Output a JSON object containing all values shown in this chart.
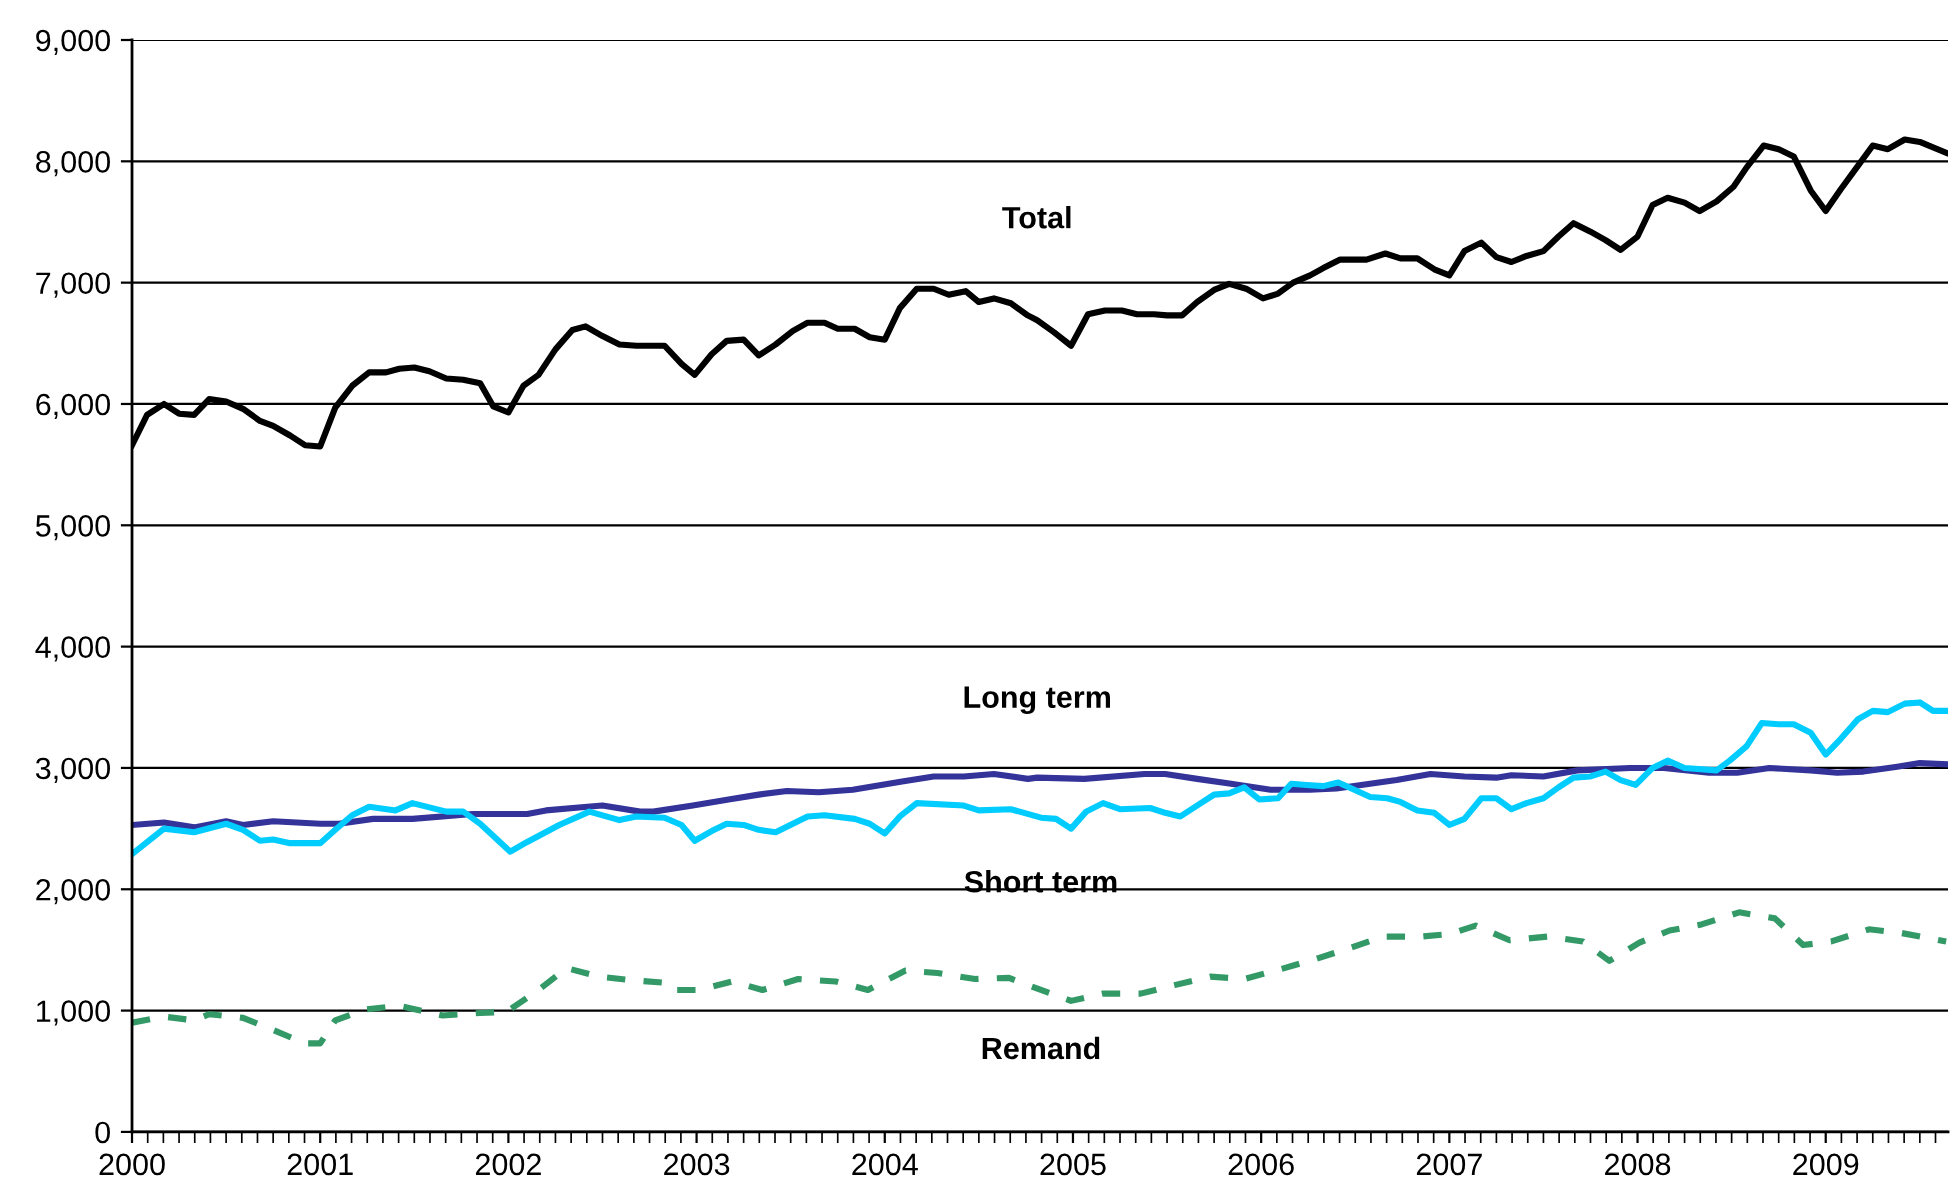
{
  "chart_data": {
    "type": "line",
    "xlim": [
      2000,
      2009.65
    ],
    "xticks": [
      2000,
      2001,
      2002,
      2003,
      2004,
      2005,
      2006,
      2007,
      2008,
      2009
    ],
    "ylim": [
      0,
      9000
    ],
    "yticks": [
      0,
      {
        "value": 1000,
        "label": "1,000"
      },
      {
        "value": 2000,
        "label": "2,000"
      },
      {
        "value": 3000,
        "label": "3,000"
      },
      {
        "value": 4000,
        "label": "4,000"
      },
      {
        "value": 5000,
        "label": "5,000"
      },
      {
        "value": 6000,
        "label": "6,000"
      },
      {
        "value": 7000,
        "label": "7,000"
      },
      {
        "value": 8000,
        "label": "8,000"
      },
      {
        "value": 9000,
        "label": "9,000"
      }
    ],
    "grid": "y",
    "legend": false,
    "marker": "none",
    "series": [
      {
        "name": "Total",
        "color": "#000000",
        "line_style": "solid",
        "x": [
          2000.0,
          2000.08,
          2000.17,
          2000.25,
          2000.33,
          2000.41,
          2000.5,
          2000.59,
          2000.68,
          2000.75,
          2000.84,
          2000.92,
          2001.0,
          2001.08,
          2001.17,
          2001.26,
          2001.35,
          2001.42,
          2001.5,
          2001.58,
          2001.67,
          2001.76,
          2001.85,
          2001.92,
          2002.0,
          2002.08,
          2002.16,
          2002.25,
          2002.34,
          2002.41,
          2002.5,
          2002.59,
          2002.68,
          2002.83,
          2002.92,
          2002.99,
          2003.08,
          2003.16,
          2003.25,
          2003.33,
          2003.42,
          2003.51,
          2003.59,
          2003.68,
          2003.75,
          2003.84,
          2003.92,
          2004.0,
          2004.08,
          2004.17,
          2004.26,
          2004.34,
          2004.43,
          2004.5,
          2004.58,
          2004.67,
          2004.76,
          2004.81,
          2004.9,
          2004.99,
          2005.08,
          2005.17,
          2005.26,
          2005.34,
          2005.43,
          2005.5,
          2005.58,
          2005.66,
          2005.75,
          2005.83,
          2005.92,
          2006.01,
          2006.09,
          2006.17,
          2006.26,
          2006.33,
          2006.42,
          2006.56,
          2006.66,
          2006.74,
          2006.83,
          2006.92,
          2007.0,
          2007.08,
          2007.17,
          2007.25,
          2007.33,
          2007.41,
          2007.5,
          2007.58,
          2007.66,
          2007.75,
          2007.83,
          2007.91,
          2008.0,
          2008.08,
          2008.16,
          2008.25,
          2008.33,
          2008.42,
          2008.51,
          2008.58,
          2008.67,
          2008.75,
          2008.83,
          2008.92,
          2009.0,
          2009.08,
          2009.17,
          2009.25,
          2009.33,
          2009.42,
          2009.5,
          2009.64
        ],
        "values": [
          5660,
          5910,
          6000,
          5920,
          5910,
          6040,
          6020,
          5960,
          5860,
          5820,
          5740,
          5660,
          5650,
          5970,
          6150,
          6260,
          6260,
          6290,
          6300,
          6270,
          6210,
          6200,
          6170,
          5980,
          5930,
          6150,
          6240,
          6450,
          6610,
          6640,
          6560,
          6490,
          6480,
          6480,
          6330,
          6240,
          6410,
          6520,
          6530,
          6400,
          6490,
          6600,
          6670,
          6670,
          6620,
          6620,
          6550,
          6530,
          6790,
          6950,
          6950,
          6900,
          6930,
          6840,
          6870,
          6830,
          6730,
          6690,
          6590,
          6480,
          6740,
          6770,
          6770,
          6740,
          6740,
          6730,
          6730,
          6840,
          6940,
          6990,
          6950,
          6870,
          6910,
          7000,
          7060,
          7120,
          7190,
          7190,
          7240,
          7200,
          7200,
          7110,
          7060,
          7260,
          7330,
          7210,
          7170,
          7220,
          7260,
          7380,
          7490,
          7420,
          7350,
          7270,
          7380,
          7640,
          7700,
          7660,
          7590,
          7670,
          7790,
          7950,
          8130,
          8100,
          8040,
          7760,
          7590,
          7770,
          7960,
          8130,
          8100,
          8180,
          8160,
          8070
        ]
      },
      {
        "name": "Long term",
        "color": "#333399",
        "line_style": "solid",
        "x": [
          2000.0,
          2000.17,
          2000.33,
          2000.5,
          2000.59,
          2000.75,
          2001.0,
          2001.1,
          2001.28,
          2001.49,
          2001.81,
          2002.1,
          2002.2,
          2002.42,
          2002.5,
          2002.7,
          2002.77,
          2002.98,
          2003.17,
          2003.33,
          2003.48,
          2003.65,
          2003.83,
          2004.1,
          2004.26,
          2004.42,
          2004.58,
          2004.76,
          2004.81,
          2005.06,
          2005.38,
          2005.49,
          2005.66,
          2005.84,
          2006.05,
          2006.26,
          2006.4,
          2006.72,
          2006.9,
          2007.08,
          2007.25,
          2007.33,
          2007.5,
          2007.68,
          2007.96,
          2008.14,
          2008.38,
          2008.53,
          2008.7,
          2008.92,
          2009.06,
          2009.2,
          2009.38,
          2009.5,
          2009.64
        ],
        "values": [
          2530,
          2550,
          2510,
          2560,
          2530,
          2560,
          2540,
          2540,
          2580,
          2580,
          2620,
          2620,
          2650,
          2680,
          2690,
          2640,
          2640,
          2690,
          2740,
          2780,
          2810,
          2800,
          2820,
          2890,
          2930,
          2930,
          2950,
          2910,
          2920,
          2910,
          2950,
          2950,
          2910,
          2870,
          2820,
          2820,
          2830,
          2900,
          2950,
          2930,
          2920,
          2940,
          2930,
          2980,
          3000,
          3000,
          2960,
          2960,
          3000,
          2980,
          2960,
          2970,
          3010,
          3040,
          3030
        ]
      },
      {
        "name": "Short term",
        "color": "#00ccff",
        "line_style": "solid",
        "x": [
          2000.0,
          2000.17,
          2000.33,
          2000.5,
          2000.59,
          2000.68,
          2000.75,
          2000.84,
          2001.0,
          2001.08,
          2001.17,
          2001.26,
          2001.4,
          2001.49,
          2001.67,
          2001.76,
          2001.85,
          2002.01,
          2002.1,
          2002.27,
          2002.43,
          2002.59,
          2002.68,
          2002.83,
          2002.92,
          2002.99,
          2003.08,
          2003.16,
          2003.25,
          2003.33,
          2003.42,
          2003.59,
          2003.68,
          2003.84,
          2003.92,
          2004.0,
          2004.08,
          2004.17,
          2004.42,
          2004.5,
          2004.67,
          2004.83,
          2004.91,
          2004.99,
          2005.07,
          2005.16,
          2005.25,
          2005.41,
          2005.49,
          2005.57,
          2005.66,
          2005.75,
          2005.83,
          2005.91,
          2005.99,
          2006.09,
          2006.16,
          2006.24,
          2006.33,
          2006.41,
          2006.58,
          2006.67,
          2006.74,
          2006.83,
          2006.92,
          2007.0,
          2007.08,
          2007.17,
          2007.25,
          2007.33,
          2007.41,
          2007.5,
          2007.58,
          2007.66,
          2007.75,
          2007.83,
          2007.91,
          2007.99,
          2008.08,
          2008.16,
          2008.25,
          2008.42,
          2008.49,
          2008.58,
          2008.66,
          2008.75,
          2008.83,
          2008.92,
          2009.0,
          2009.08,
          2009.17,
          2009.25,
          2009.33,
          2009.42,
          2009.5,
          2009.57,
          2009.64
        ],
        "values": [
          2290,
          2500,
          2470,
          2540,
          2490,
          2400,
          2410,
          2380,
          2380,
          2490,
          2610,
          2680,
          2650,
          2710,
          2640,
          2640,
          2540,
          2310,
          2390,
          2530,
          2640,
          2570,
          2600,
          2590,
          2530,
          2400,
          2480,
          2540,
          2530,
          2490,
          2470,
          2600,
          2610,
          2580,
          2540,
          2460,
          2600,
          2710,
          2690,
          2650,
          2660,
          2590,
          2580,
          2500,
          2640,
          2710,
          2660,
          2670,
          2630,
          2600,
          2690,
          2780,
          2790,
          2840,
          2740,
          2750,
          2870,
          2860,
          2850,
          2880,
          2760,
          2750,
          2720,
          2650,
          2630,
          2530,
          2580,
          2750,
          2750,
          2660,
          2710,
          2750,
          2840,
          2920,
          2930,
          2970,
          2900,
          2860,
          3000,
          3060,
          3000,
          2980,
          3060,
          3180,
          3370,
          3360,
          3360,
          3290,
          3110,
          3240,
          3400,
          3470,
          3460,
          3530,
          3540,
          3470,
          3470
        ]
      },
      {
        "name": "Remand",
        "color": "#339966",
        "line_style": "dashed",
        "x": [
          2000.0,
          2000.17,
          2000.33,
          2000.41,
          2000.59,
          2000.75,
          2000.92,
          2001.0,
          2001.08,
          2001.24,
          2001.42,
          2001.65,
          2001.85,
          2001.99,
          2002.16,
          2002.31,
          2002.48,
          2002.66,
          2002.83,
          2002.87,
          2003.01,
          2003.19,
          2003.35,
          2003.54,
          2003.74,
          2003.91,
          2004.11,
          2004.28,
          2004.48,
          2004.66,
          2004.83,
          2004.99,
          2005.16,
          2005.36,
          2005.54,
          2005.73,
          2005.91,
          2006.1,
          2006.28,
          2006.46,
          2006.65,
          2006.85,
          2007.0,
          2007.14,
          2007.32,
          2007.52,
          2007.71,
          2007.85,
          2008.01,
          2008.17,
          2008.34,
          2008.54,
          2008.73,
          2008.88,
          2009.03,
          2009.23,
          2009.4,
          2009.64
        ],
        "values": [
          900,
          950,
          920,
          970,
          940,
          840,
          730,
          730,
          920,
          1010,
          1040,
          960,
          980,
          990,
          1170,
          1350,
          1280,
          1250,
          1230,
          1170,
          1170,
          1240,
          1170,
          1260,
          1240,
          1170,
          1330,
          1310,
          1260,
          1270,
          1170,
          1080,
          1140,
          1140,
          1210,
          1280,
          1260,
          1340,
          1420,
          1510,
          1610,
          1610,
          1630,
          1700,
          1580,
          1610,
          1570,
          1410,
          1560,
          1660,
          1710,
          1810,
          1760,
          1540,
          1570,
          1670,
          1640,
          1570
        ]
      }
    ]
  }
}
